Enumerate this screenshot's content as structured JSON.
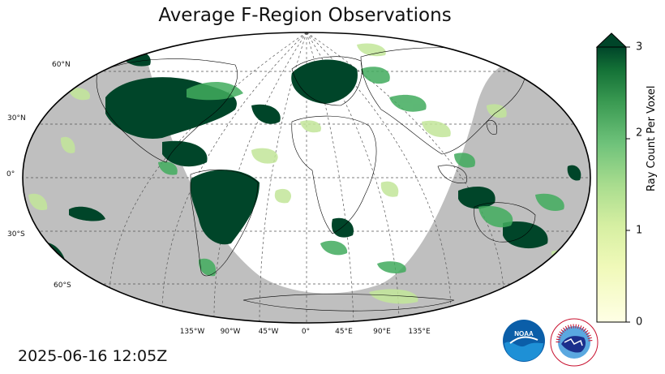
{
  "title": "Average F-Region Observations",
  "timestamp": "2025-06-16 12:05Z",
  "map": {
    "projection": "robinson",
    "ocean_color": "#ffffff",
    "night_shade_color": "#bfbfbf",
    "coastline_color": "#000000",
    "graticule": "dashed",
    "lat_labels": [
      "60°N",
      "30°N",
      "0°",
      "30°S",
      "60°S"
    ],
    "lon_labels": [
      "135°W",
      "90°W",
      "45°W",
      "0°",
      "45°E",
      "90°E",
      "135°E"
    ]
  },
  "colorbar": {
    "label": "Ray Count Per Voxel",
    "colormap": "YlGn",
    "min": 0,
    "max": 3,
    "extend": "max",
    "ticks": [
      "0",
      "1",
      "2",
      "3"
    ]
  },
  "logos": {
    "noaa_text": "NOAA",
    "nws_text": "NATIONAL WEATHER SERVICE"
  }
}
